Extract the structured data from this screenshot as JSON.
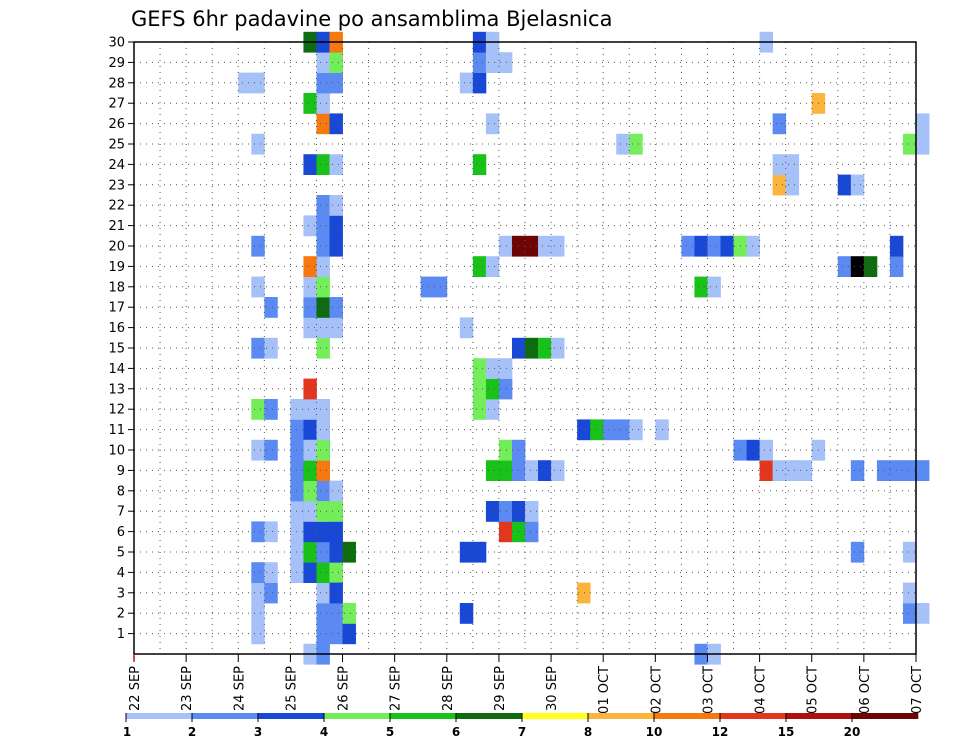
{
  "chart_data": {
    "type": "heatmap",
    "title": "GEFS 6hr padavine po ansamblima Bjelasnica",
    "y_tick_labels": [
      "1",
      "2",
      "3",
      "4",
      "5",
      "6",
      "7",
      "8",
      "9",
      "10",
      "11",
      "12",
      "13",
      "14",
      "15",
      "16",
      "17",
      "18",
      "19",
      "20",
      "21",
      "22",
      "23",
      "24",
      "25",
      "26",
      "27",
      "28",
      "29",
      "30"
    ],
    "x_tick_labels": [
      "22 SEP",
      "23 SEP",
      "24 SEP",
      "25 SEP",
      "26 SEP",
      "27 SEP",
      "28 SEP",
      "29 SEP",
      "30 SEP",
      "01 OCT",
      "02 OCT",
      "03 OCT",
      "04 OCT",
      "05 OCT",
      "06 OCT",
      "07 OCT"
    ],
    "x_range_6h_steps": [
      0,
      60
    ],
    "y_range_members": [
      0,
      30
    ],
    "grid": "dotted",
    "colorbar": {
      "labels": [
        "1",
        "2",
        "3",
        "4",
        "5",
        "6",
        "7",
        "8",
        "10",
        "12",
        "15",
        "20"
      ],
      "colors": [
        "#a6c1f7",
        "#5b8af2",
        "#1a48d6",
        "#74ed5a",
        "#19c219",
        "#0f6b10",
        "#ffff1a",
        "#fbb43c",
        "#f7780f",
        "#e2371c",
        "#af0f0f",
        "#6e0505"
      ]
    },
    "cells": [
      [
        13,
        0,
        1
      ],
      [
        14,
        0,
        2
      ],
      [
        43,
        0,
        2
      ],
      [
        44,
        0,
        1
      ],
      [
        9,
        1,
        1
      ],
      [
        9,
        2,
        1
      ],
      [
        14,
        1,
        2
      ],
      [
        14,
        2,
        2
      ],
      [
        14,
        3,
        1
      ],
      [
        15,
        1,
        2
      ],
      [
        15,
        2,
        2
      ],
      [
        16,
        1,
        3
      ],
      [
        16,
        2,
        4
      ],
      [
        9,
        3,
        1
      ],
      [
        10,
        3,
        2
      ],
      [
        12,
        4,
        1
      ],
      [
        12,
        5,
        1
      ],
      [
        12,
        6,
        1
      ],
      [
        12,
        7,
        1
      ],
      [
        12,
        8,
        2
      ],
      [
        12,
        9,
        2
      ],
      [
        12,
        10,
        2
      ],
      [
        12,
        11,
        2
      ],
      [
        12,
        12,
        1
      ],
      [
        13,
        4,
        3
      ],
      [
        13,
        5,
        5
      ],
      [
        13,
        6,
        3
      ],
      [
        13,
        7,
        3
      ],
      [
        13,
        8,
        3
      ],
      [
        13,
        9,
        3
      ],
      [
        13,
        10,
        3
      ],
      [
        13,
        11,
        3
      ],
      [
        13,
        12,
        1
      ],
      [
        14,
        4,
        5
      ],
      [
        14,
        5,
        2
      ],
      [
        14,
        6,
        3
      ],
      [
        14,
        7,
        2
      ],
      [
        14,
        8,
        2
      ],
      [
        14,
        9,
        2
      ],
      [
        14,
        10,
        3
      ],
      [
        14,
        11,
        3
      ],
      [
        14,
        12,
        2
      ],
      [
        15,
        4,
        4
      ],
      [
        15,
        5,
        2
      ],
      [
        15,
        6,
        1
      ],
      [
        15,
        7,
        1
      ],
      [
        25,
        2,
        3
      ],
      [
        59,
        2,
        2
      ],
      [
        60,
        2,
        1
      ],
      [
        59,
        3,
        1
      ],
      [
        34,
        3,
        8
      ],
      [
        9,
        4,
        2
      ],
      [
        10,
        4,
        1
      ],
      [
        15,
        3,
        3
      ],
      [
        15,
        6,
        3
      ],
      [
        55,
        5,
        2
      ],
      [
        59,
        5,
        1
      ],
      [
        9,
        6,
        2
      ],
      [
        10,
        6,
        1
      ],
      [
        28,
        6,
        10
      ],
      [
        29,
        6,
        5
      ],
      [
        30,
        6,
        2
      ],
      [
        15,
        5,
        3
      ],
      [
        25,
        5,
        3
      ],
      [
        26,
        5,
        3
      ],
      [
        16,
        5,
        6
      ],
      [
        13,
        7,
        1
      ],
      [
        14,
        7,
        4
      ],
      [
        15,
        7,
        4
      ],
      [
        27,
        7,
        3
      ],
      [
        28,
        7,
        2
      ],
      [
        29,
        7,
        3
      ],
      [
        30,
        7,
        1
      ],
      [
        13,
        8,
        4
      ],
      [
        15,
        8,
        1
      ],
      [
        13,
        9,
        5
      ],
      [
        14,
        9,
        9
      ],
      [
        27,
        9,
        5
      ],
      [
        28,
        9,
        5
      ],
      [
        29,
        9,
        2
      ],
      [
        30,
        9,
        1
      ],
      [
        31,
        9,
        3
      ],
      [
        32,
        9,
        1
      ],
      [
        48,
        9,
        10
      ],
      [
        49,
        9,
        1
      ],
      [
        50,
        9,
        1
      ],
      [
        51,
        9,
        1
      ],
      [
        55,
        9,
        2
      ],
      [
        57,
        9,
        2
      ],
      [
        58,
        9,
        2
      ],
      [
        59,
        9,
        2
      ],
      [
        60,
        9,
        2
      ],
      [
        9,
        10,
        1
      ],
      [
        10,
        10,
        2
      ],
      [
        13,
        10,
        1
      ],
      [
        14,
        10,
        4
      ],
      [
        28,
        10,
        4
      ],
      [
        29,
        10,
        2
      ],
      [
        46,
        10,
        2
      ],
      [
        47,
        10,
        3
      ],
      [
        48,
        10,
        1
      ],
      [
        52,
        10,
        1
      ],
      [
        14,
        11,
        1
      ],
      [
        34,
        11,
        3
      ],
      [
        35,
        11,
        5
      ],
      [
        36,
        11,
        2
      ],
      [
        37,
        11,
        2
      ],
      [
        38,
        11,
        1
      ],
      [
        40,
        11,
        1
      ],
      [
        9,
        12,
        4
      ],
      [
        10,
        12,
        2
      ],
      [
        14,
        12,
        1
      ],
      [
        26,
        12,
        4
      ],
      [
        27,
        12,
        1
      ],
      [
        13,
        13,
        10
      ],
      [
        26,
        13,
        4
      ],
      [
        27,
        13,
        5
      ],
      [
        28,
        13,
        2
      ],
      [
        26,
        14,
        4
      ],
      [
        27,
        14,
        1
      ],
      [
        28,
        14,
        1
      ],
      [
        9,
        15,
        2
      ],
      [
        10,
        15,
        1
      ],
      [
        14,
        15,
        4
      ],
      [
        29,
        15,
        3
      ],
      [
        30,
        15,
        6
      ],
      [
        31,
        15,
        5
      ],
      [
        32,
        15,
        1
      ],
      [
        13,
        16,
        1
      ],
      [
        14,
        16,
        1
      ],
      [
        15,
        16,
        1
      ],
      [
        25,
        16,
        1
      ],
      [
        10,
        17,
        2
      ],
      [
        13,
        17,
        2
      ],
      [
        14,
        17,
        6
      ],
      [
        15,
        17,
        2
      ],
      [
        9,
        18,
        1
      ],
      [
        13,
        18,
        1
      ],
      [
        14,
        18,
        4
      ],
      [
        22,
        18,
        2
      ],
      [
        23,
        18,
        2
      ],
      [
        43,
        18,
        5
      ],
      [
        44,
        18,
        1
      ],
      [
        13,
        19,
        9
      ],
      [
        14,
        19,
        1
      ],
      [
        26,
        19,
        5
      ],
      [
        27,
        19,
        1
      ],
      [
        54,
        19,
        2
      ],
      [
        55,
        19,
        14
      ],
      [
        56,
        19,
        6
      ],
      [
        58,
        19,
        2
      ],
      [
        9,
        20,
        2
      ],
      [
        14,
        20,
        2
      ],
      [
        15,
        20,
        3
      ],
      [
        28,
        20,
        1
      ],
      [
        29,
        20,
        12
      ],
      [
        30,
        20,
        12
      ],
      [
        31,
        20,
        1
      ],
      [
        32,
        20,
        1
      ],
      [
        42,
        20,
        2
      ],
      [
        43,
        20,
        3
      ],
      [
        44,
        20,
        2
      ],
      [
        45,
        20,
        3
      ],
      [
        46,
        20,
        4
      ],
      [
        47,
        20,
        1
      ],
      [
        58,
        20,
        3
      ],
      [
        13,
        21,
        1
      ],
      [
        14,
        21,
        2
      ],
      [
        15,
        21,
        3
      ],
      [
        14,
        22,
        2
      ],
      [
        15,
        22,
        1
      ],
      [
        49,
        23,
        8
      ],
      [
        50,
        23,
        1
      ],
      [
        54,
        23,
        3
      ],
      [
        55,
        23,
        1
      ],
      [
        13,
        24,
        3
      ],
      [
        14,
        24,
        5
      ],
      [
        15,
        24,
        1
      ],
      [
        26,
        24,
        5
      ],
      [
        49,
        24,
        1
      ],
      [
        50,
        24,
        1
      ],
      [
        9,
        25,
        1
      ],
      [
        37,
        25,
        1
      ],
      [
        38,
        25,
        4
      ],
      [
        59,
        25,
        4
      ],
      [
        60,
        25,
        1
      ],
      [
        14,
        26,
        9
      ],
      [
        15,
        26,
        3
      ],
      [
        27,
        26,
        1
      ],
      [
        49,
        26,
        2
      ],
      [
        60,
        26,
        1
      ],
      [
        13,
        27,
        5
      ],
      [
        14,
        27,
        1
      ],
      [
        52,
        27,
        8
      ],
      [
        8,
        28,
        1
      ],
      [
        9,
        28,
        1
      ],
      [
        14,
        28,
        2
      ],
      [
        15,
        28,
        2
      ],
      [
        25,
        28,
        1
      ],
      [
        26,
        28,
        3
      ],
      [
        14,
        29,
        1
      ],
      [
        15,
        29,
        4
      ],
      [
        26,
        29,
        2
      ],
      [
        27,
        29,
        1
      ],
      [
        28,
        29,
        1
      ],
      [
        13,
        30,
        6
      ],
      [
        14,
        30,
        3
      ],
      [
        15,
        30,
        9
      ],
      [
        26,
        30,
        3
      ],
      [
        27,
        30,
        1
      ],
      [
        48,
        30,
        1
      ]
    ]
  }
}
